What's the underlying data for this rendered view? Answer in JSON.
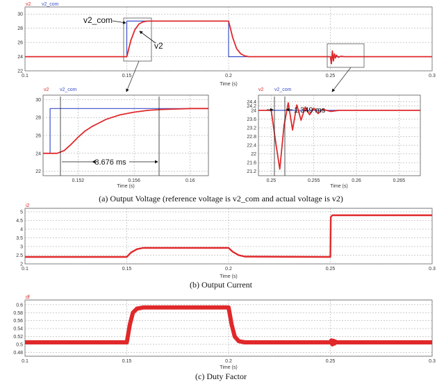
{
  "colors": {
    "series_red": "#e0282a",
    "series_blue": "#3b4fc8",
    "grid": "#9a9a9a",
    "frame": "#555555"
  },
  "captions": {
    "a": "(a) Output Voltage (reference voltage is v2_com and actual voltage is v2)",
    "b": "(b) Output Current",
    "c": "(c) Duty Factor"
  },
  "annotations": {
    "v2_com": "v2_com",
    "v2": "v2",
    "rise_time": "8.676 ms",
    "settle_time": "1.349 ms"
  },
  "chart_data": [
    {
      "id": "voltage_main",
      "type": "line",
      "xlabel": "Time (s)",
      "ylabel": "",
      "xlim": [
        0.1,
        0.3
      ],
      "ylim": [
        22,
        31
      ],
      "xticks": [
        "0.1",
        "0.15",
        "0.2",
        "0.25",
        "0.3"
      ],
      "xtick_values": [
        0.1,
        0.15,
        0.2,
        0.25,
        0.3
      ],
      "yticks": [
        "22",
        "24",
        "26",
        "28",
        "30"
      ],
      "ytick_values": [
        22,
        24,
        26,
        28,
        30
      ],
      "legend": [
        "v2",
        "v2_com"
      ],
      "series": [
        {
          "name": "v2_com",
          "color": "blue",
          "x": [
            0.1,
            0.15,
            0.15,
            0.2,
            0.2,
            0.3
          ],
          "y": [
            24,
            24,
            29,
            29,
            24,
            24
          ]
        },
        {
          "name": "v2",
          "color": "red",
          "x": [
            0.1,
            0.15,
            0.152,
            0.154,
            0.156,
            0.158,
            0.16,
            0.165,
            0.2,
            0.202,
            0.204,
            0.206,
            0.208,
            0.21,
            0.215,
            0.25,
            0.2505,
            0.251,
            0.2515,
            0.252,
            0.2525,
            0.253,
            0.254,
            0.255,
            0.257,
            0.3
          ],
          "y": [
            24,
            24,
            26.3,
            27.8,
            28.6,
            28.9,
            29.0,
            29.0,
            29.0,
            26.7,
            25.1,
            24.4,
            24.1,
            24.0,
            24.0,
            24.0,
            23.0,
            24.8,
            23.4,
            24.4,
            23.8,
            24.2,
            23.9,
            24.05,
            24.0,
            24.0
          ]
        }
      ]
    },
    {
      "id": "voltage_zoom_rise",
      "type": "line",
      "xlabel": "Time (s)",
      "ylabel": "",
      "xlim": [
        0.1495,
        0.1613
      ],
      "ylim": [
        21.5,
        30.5
      ],
      "xticks": [
        "0.152",
        "0.156",
        "0.16"
      ],
      "xtick_values": [
        0.152,
        0.156,
        0.16
      ],
      "yticks": [
        "22",
        "24",
        "26",
        "28",
        "30"
      ],
      "ytick_values": [
        22,
        24,
        26,
        28,
        30
      ],
      "legend": [
        "v2",
        "v2_com"
      ],
      "series": [
        {
          "name": "v2_com",
          "color": "blue",
          "x": [
            0.1495,
            0.15,
            0.15,
            0.1613
          ],
          "y": [
            24,
            24,
            29,
            29
          ]
        },
        {
          "name": "v2",
          "color": "red",
          "x": [
            0.1495,
            0.1505,
            0.151,
            0.1515,
            0.152,
            0.1525,
            0.153,
            0.1535,
            0.154,
            0.155,
            0.156,
            0.157,
            0.158,
            0.159,
            0.16,
            0.1613
          ],
          "y": [
            24,
            24,
            24.3,
            25.0,
            25.8,
            26.5,
            27.0,
            27.4,
            27.8,
            28.3,
            28.6,
            28.8,
            28.9,
            28.95,
            29.0,
            29.0
          ]
        }
      ]
    },
    {
      "id": "voltage_zoom_step",
      "type": "line",
      "xlabel": "Time (s)",
      "ylabel": "",
      "xlim": [
        0.2485,
        0.2675
      ],
      "ylim": [
        21.0,
        24.7
      ],
      "xticks": [
        "0.25",
        "0.255",
        "0.26",
        "0.265"
      ],
      "xtick_values": [
        0.25,
        0.255,
        0.26,
        0.265
      ],
      "yticks": [
        "21.2",
        "21.6",
        "22",
        "22.4",
        "22.8",
        "23.2",
        "23.6",
        "24",
        "24.2",
        "24.4"
      ],
      "ytick_values": [
        21.2,
        21.6,
        22,
        22.4,
        22.8,
        23.2,
        23.6,
        24,
        24.2,
        24.4
      ],
      "legend": [
        "v2",
        "v2_com"
      ],
      "series": [
        {
          "name": "v2_com",
          "color": "blue",
          "x": [
            0.2485,
            0.2675
          ],
          "y": [
            24,
            24
          ]
        },
        {
          "name": "v2",
          "color": "red",
          "x": [
            0.2485,
            0.25,
            0.2505,
            0.251,
            0.2515,
            0.252,
            0.2525,
            0.253,
            0.2535,
            0.254,
            0.2545,
            0.255,
            0.2555,
            0.256,
            0.257,
            0.258,
            0.2675
          ],
          "y": [
            24,
            24,
            22.6,
            21.3,
            23.3,
            24.35,
            23.1,
            24.25,
            23.55,
            24.15,
            23.8,
            24.1,
            23.85,
            24.05,
            23.95,
            24.0,
            24.0
          ]
        }
      ]
    },
    {
      "id": "current",
      "type": "line",
      "xlabel": "Time (s)",
      "ylabel": "",
      "xlim": [
        0.1,
        0.3
      ],
      "ylim": [
        2.0,
        5.2
      ],
      "xticks": [
        "0.1",
        "0.15",
        "0.2",
        "0.25",
        "0.3"
      ],
      "xtick_values": [
        0.1,
        0.15,
        0.2,
        0.25,
        0.3
      ],
      "yticks": [
        "2",
        "2.5",
        "3",
        "3.5",
        "4",
        "4.5",
        "5"
      ],
      "ytick_values": [
        2,
        2.5,
        3,
        3.5,
        4,
        4.5,
        5
      ],
      "legend": [
        "i2"
      ],
      "series": [
        {
          "name": "i2",
          "color": "red",
          "x": [
            0.1,
            0.15,
            0.152,
            0.155,
            0.158,
            0.2,
            0.202,
            0.205,
            0.208,
            0.25,
            0.2502,
            0.251,
            0.3
          ],
          "y": [
            2.4,
            2.4,
            2.65,
            2.85,
            2.92,
            2.92,
            2.7,
            2.5,
            2.42,
            2.4,
            4.7,
            4.8,
            4.8
          ]
        }
      ]
    },
    {
      "id": "duty",
      "type": "line",
      "xlabel": "Time (s)",
      "ylabel": "",
      "xlim": [
        0.1,
        0.3
      ],
      "ylim": [
        0.47,
        0.612
      ],
      "xticks": [
        "0.1",
        "0.15",
        "0.2",
        "0.25",
        "0.3"
      ],
      "xtick_values": [
        0.1,
        0.15,
        0.2,
        0.25,
        0.3
      ],
      "yticks": [
        "0.48",
        "0.5",
        "0.52",
        "0.54",
        "0.56",
        "0.58",
        "0.6"
      ],
      "ytick_values": [
        0.48,
        0.5,
        0.52,
        0.54,
        0.56,
        0.58,
        0.6
      ],
      "legend": [
        "df"
      ],
      "series": [
        {
          "name": "df",
          "color": "red",
          "x": [
            0.1,
            0.15,
            0.1515,
            0.153,
            0.155,
            0.158,
            0.2,
            0.2015,
            0.203,
            0.205,
            0.208,
            0.25,
            0.2505,
            0.251,
            0.2515,
            0.252,
            0.2525,
            0.253,
            0.3
          ],
          "y": [
            0.505,
            0.505,
            0.55,
            0.58,
            0.59,
            0.593,
            0.593,
            0.55,
            0.52,
            0.508,
            0.505,
            0.505,
            0.51,
            0.5,
            0.509,
            0.502,
            0.507,
            0.505,
            0.505
          ]
        }
      ]
    }
  ]
}
